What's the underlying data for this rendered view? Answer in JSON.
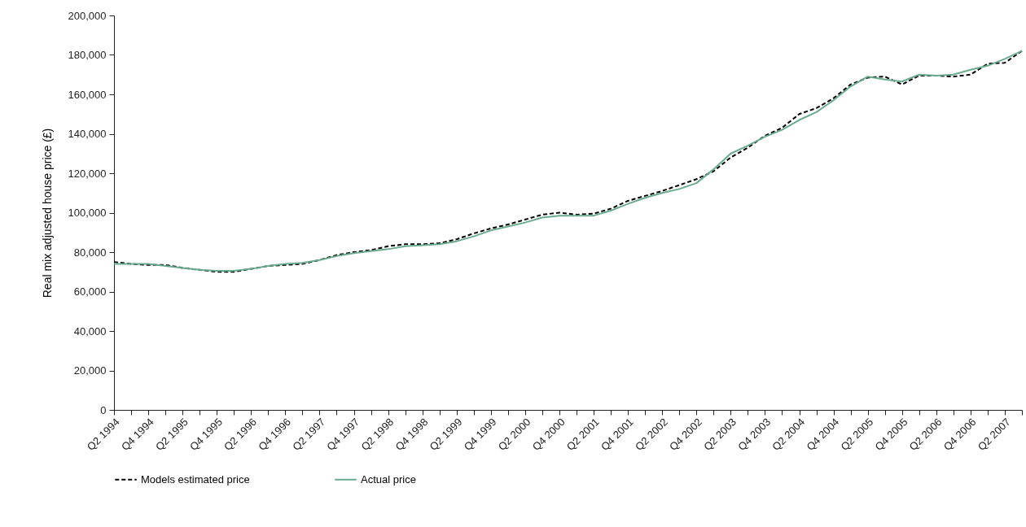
{
  "chart_data": {
    "type": "line",
    "ylabel": "Real mix adjusted house price (£)",
    "categories": [
      "Q2 1994",
      null,
      "Q4 1994",
      null,
      "Q2 1995",
      null,
      "Q4 1995",
      null,
      "Q2 1996",
      null,
      "Q4 1996",
      null,
      "Q2 1997",
      null,
      "Q4 1997",
      null,
      "Q2 1998",
      null,
      "Q4 1998",
      null,
      "Q2 1999",
      null,
      "Q4 1999",
      null,
      "Q2 2000",
      null,
      "Q4 2000",
      null,
      "Q2 2001",
      null,
      "Q4 2001",
      null,
      "Q2 2002",
      null,
      "Q4 2002",
      null,
      "Q2 2003",
      null,
      "Q4 2003",
      null,
      "Q2 2004",
      null,
      "Q4 2004",
      null,
      "Q2 2005",
      null,
      "Q4 2005",
      null,
      "Q2 2006",
      null,
      "Q4 2006",
      null,
      "Q2 2007",
      null
    ],
    "series": [
      {
        "name": "Models estimated price",
        "color": "#000000",
        "line_style": "dashed",
        "values": [
          75000,
          74000,
          73500,
          73500,
          72000,
          71000,
          70000,
          70000,
          71500,
          73000,
          73500,
          74000,
          76000,
          78500,
          80000,
          81000,
          83000,
          84000,
          84000,
          84500,
          86500,
          89500,
          92000,
          94000,
          96500,
          99000,
          100000,
          99000,
          99500,
          102000,
          106000,
          108500,
          111000,
          114000,
          117000,
          121000,
          128000,
          133000,
          139000,
          143000,
          150000,
          153000,
          158000,
          165000,
          168500,
          169000,
          165000,
          169500,
          169500,
          169000,
          170000,
          175500,
          176000,
          182000
        ]
      },
      {
        "name": "Actual price",
        "color": "#6aab8e",
        "line_style": "solid",
        "values": [
          74000,
          74000,
          74000,
          73000,
          72000,
          71000,
          70500,
          70500,
          71500,
          73000,
          74000,
          74500,
          76000,
          78000,
          79500,
          80500,
          81500,
          83000,
          83500,
          84000,
          85500,
          88000,
          91000,
          93000,
          95000,
          97500,
          98500,
          98500,
          98500,
          101000,
          104500,
          107500,
          110000,
          112000,
          115000,
          122000,
          130000,
          134000,
          138500,
          142000,
          147000,
          151000,
          157000,
          164000,
          169000,
          167500,
          166500,
          170000,
          169500,
          170000,
          172500,
          174500,
          178000,
          182000
        ]
      }
    ],
    "ylim": [
      0,
      200000
    ],
    "yticks": [
      0,
      {
        "value": 20000,
        "label": "20,000"
      },
      {
        "value": 40000,
        "label": "40,000"
      },
      {
        "value": 60000,
        "label": "60,000"
      },
      {
        "value": 80000,
        "label": "80,000"
      },
      {
        "value": 100000,
        "label": "100,000"
      },
      {
        "value": 120000,
        "label": "120,000"
      },
      {
        "value": 140000,
        "label": "140,000"
      },
      {
        "value": 160000,
        "label": "160,000"
      },
      {
        "value": 180000,
        "label": "180,000"
      },
      {
        "value": 200000,
        "label": "200,000"
      }
    ],
    "legend": "bottom",
    "grid": false
  }
}
